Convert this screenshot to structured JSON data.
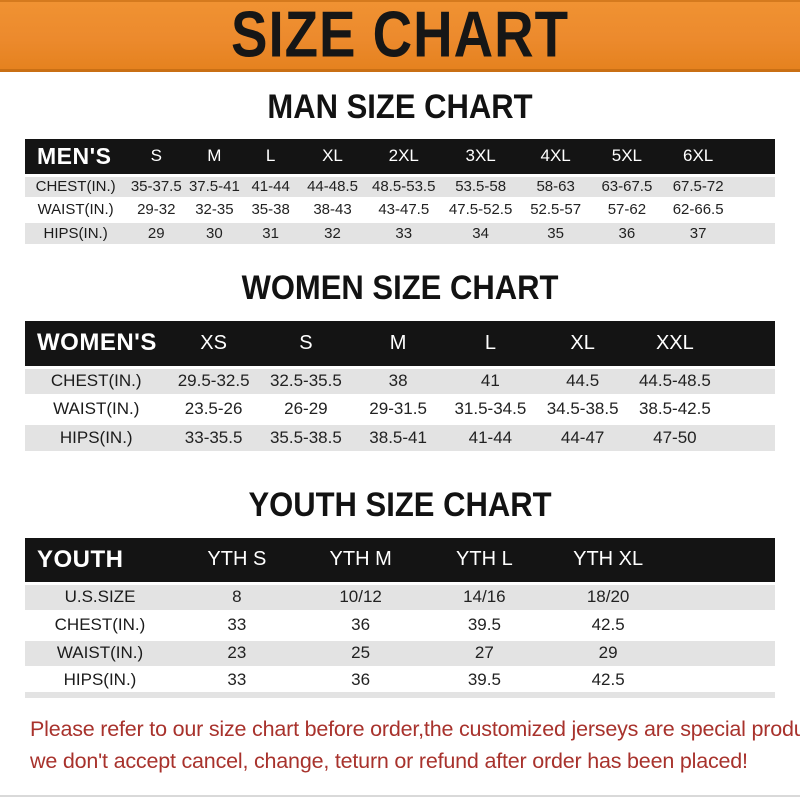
{
  "page": {
    "banner": {
      "title": "SIZE CHART",
      "bg_color": "#EC8A2D",
      "text_color": "#161616"
    },
    "sections": [
      {
        "heading": "MAN SIZE CHART",
        "table": {
          "label": "MEN'S",
          "columns": [
            "S",
            "M",
            "L",
            "XL",
            "2XL",
            "3XL",
            "4XL",
            "5XL",
            "6XL"
          ],
          "rows": [
            {
              "label": "CHEST(IN.)",
              "values": [
                "35-37.5",
                "37.5-41",
                "41-44",
                "44-48.5",
                "48.5-53.5",
                "53.5-58",
                "58-63",
                "63-67.5",
                "67.5-72"
              ]
            },
            {
              "label": "WAIST(IN.)",
              "values": [
                "29-32",
                "32-35",
                "35-38",
                "38-43",
                "43-47.5",
                "47.5-52.5",
                "52.5-57",
                "57-62",
                "62-66.5"
              ]
            },
            {
              "label": "HIPS(IN.)",
              "values": [
                "29",
                "30",
                "31",
                "32",
                "33",
                "34",
                "35",
                "36",
                "37"
              ]
            }
          ]
        }
      },
      {
        "heading": "WOMEN SIZE CHART",
        "table": {
          "label": "WOMEN'S",
          "columns": [
            "XS",
            "S",
            "M",
            "L",
            "XL",
            "XXL"
          ],
          "rows": [
            {
              "label": "CHEST(IN.)",
              "values": [
                "29.5-32.5",
                "32.5-35.5",
                "38",
                "41",
                "44.5",
                "44.5-48.5"
              ]
            },
            {
              "label": "WAIST(IN.)",
              "values": [
                "23.5-26",
                "26-29",
                "29-31.5",
                "31.5-34.5",
                "34.5-38.5",
                "38.5-42.5"
              ]
            },
            {
              "label": "HIPS(IN.)",
              "values": [
                "33-35.5",
                "35.5-38.5",
                "38.5-41",
                "41-44",
                "44-47",
                "47-50"
              ]
            }
          ]
        }
      },
      {
        "heading": "YOUTH SIZE CHART",
        "table": {
          "label": "YOUTH",
          "columns": [
            "YTH S",
            "YTH M",
            "YTH L",
            "YTH XL"
          ],
          "rows": [
            {
              "label": "U.S.SIZE",
              "values": [
                "8",
                "10/12",
                "14/16",
                "18/20"
              ]
            },
            {
              "label": "CHEST(IN.)",
              "values": [
                "33",
                "36",
                "39.5",
                "42.5"
              ]
            },
            {
              "label": "WAIST(IN.)",
              "values": [
                "23",
                "25",
                "27",
                "29"
              ]
            },
            {
              "label": "HIPS(IN.)",
              "values": [
                "33",
                "36",
                "39.5",
                "42.5"
              ]
            }
          ]
        }
      }
    ],
    "footer_note": {
      "color": "#A8322C",
      "lines": [
        "Please refer to our size chart before order,the customized jerseys are special products,",
        "we don't accept cancel, change, teturn or refund after order has been placed!"
      ]
    }
  }
}
